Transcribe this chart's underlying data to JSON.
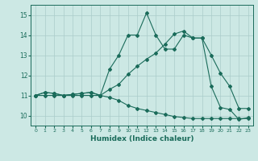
{
  "xlabel": "Humidex (Indice chaleur)",
  "bg_color": "#cce8e4",
  "grid_color": "#aaccca",
  "line_color": "#1a6b5a",
  "xlim": [
    -0.5,
    23.5
  ],
  "ylim": [
    9.5,
    15.5
  ],
  "xticks": [
    0,
    1,
    2,
    3,
    4,
    5,
    6,
    7,
    8,
    9,
    10,
    11,
    12,
    13,
    14,
    15,
    16,
    17,
    18,
    19,
    20,
    21,
    22,
    23
  ],
  "yticks": [
    10,
    11,
    12,
    13,
    14,
    15
  ],
  "line1_x": [
    0,
    1,
    2,
    3,
    4,
    5,
    6,
    7,
    8,
    9,
    10,
    11,
    12,
    13,
    14,
    15,
    16,
    17,
    18,
    19,
    20,
    21,
    22,
    23
  ],
  "line1_y": [
    11.0,
    11.15,
    11.1,
    11.0,
    11.05,
    11.1,
    11.15,
    11.0,
    11.3,
    11.55,
    12.05,
    12.45,
    12.8,
    13.1,
    13.55,
    14.05,
    14.2,
    13.85,
    13.85,
    13.0,
    12.1,
    11.45,
    10.35,
    10.35
  ],
  "line2_x": [
    0,
    1,
    2,
    3,
    4,
    5,
    6,
    7,
    8,
    9,
    10,
    11,
    12,
    13,
    14,
    15,
    16,
    17,
    18,
    19,
    20,
    21,
    22,
    23
  ],
  "line2_y": [
    11.0,
    11.15,
    11.1,
    11.0,
    11.05,
    11.1,
    11.15,
    11.0,
    12.3,
    13.0,
    14.0,
    14.0,
    15.1,
    14.0,
    13.3,
    13.3,
    14.0,
    13.85,
    13.85,
    11.45,
    10.4,
    10.3,
    9.8,
    9.9
  ],
  "line3_x": [
    0,
    1,
    2,
    3,
    4,
    5,
    6,
    7,
    8,
    9,
    10,
    11,
    12,
    13,
    14,
    15,
    16,
    17,
    18,
    19,
    20,
    21,
    22,
    23
  ],
  "line3_y": [
    11.0,
    11.0,
    11.0,
    11.0,
    11.0,
    11.0,
    11.0,
    11.0,
    10.9,
    10.75,
    10.5,
    10.35,
    10.25,
    10.15,
    10.05,
    9.95,
    9.9,
    9.85,
    9.85,
    9.85,
    9.85,
    9.85,
    9.85,
    9.85
  ]
}
